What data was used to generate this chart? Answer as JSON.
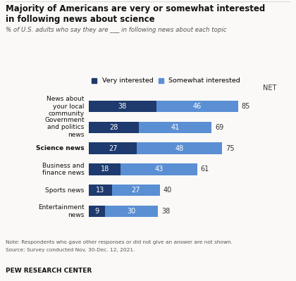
{
  "title_line1": "Majority of Americans are very or somewhat interested",
  "title_line2": "in following news about science",
  "subtitle": "% of U.S. adults who say they are ___ in following news about each topic",
  "categories": [
    "News about\nyour local\ncommunity",
    "Government\nand politics\nnews",
    "Science news",
    "Business and\nfinance news",
    "Sports news",
    "Entertainment\nnews"
  ],
  "bold_category_index": 2,
  "very_interested": [
    38,
    28,
    27,
    18,
    13,
    9
  ],
  "somewhat_interested": [
    46,
    41,
    48,
    43,
    27,
    30
  ],
  "net": [
    85,
    69,
    75,
    61,
    40,
    38
  ],
  "color_very": "#1e3a6e",
  "color_somewhat": "#5b8fd4",
  "legend_labels": [
    "Very interested",
    "Somewhat interested"
  ],
  "note_line1": "Note: Respondents who gave other responses or did not give an answer are not shown.",
  "note_line2": "Source: Survey conducted Nov. 30-Dec. 12, 2021.",
  "footer": "PEW RESEARCH CENTER",
  "net_label": "NET",
  "bar_height": 0.55,
  "background_color": "#faf9f7"
}
